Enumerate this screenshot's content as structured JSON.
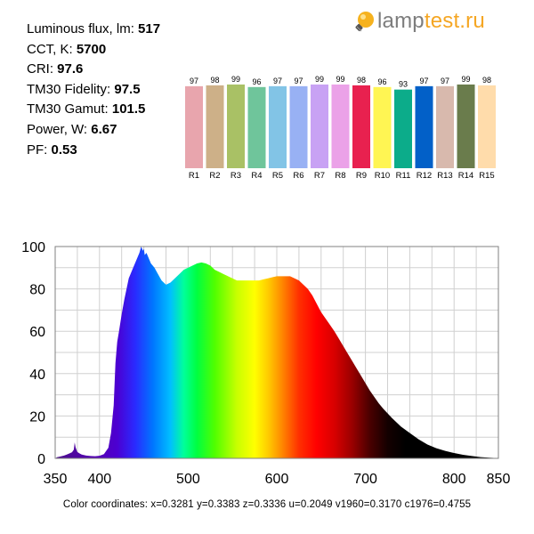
{
  "site": {
    "logo_icon": "lightbulb-icon",
    "logo_lamp": "lamp",
    "logo_test": "test.ru"
  },
  "params": [
    {
      "label": "Luminous flux, lm: ",
      "value": "517"
    },
    {
      "label": "CCT, K: ",
      "value": "5700"
    },
    {
      "label": "CRI: ",
      "value": "97.6"
    },
    {
      "label": "TM30 Fidelity: ",
      "value": "97.5"
    },
    {
      "label": "TM30 Gamut: ",
      "value": "101.5"
    },
    {
      "label": "Power, W:  ",
      "value": "6.67"
    },
    {
      "label": "PF:  ",
      "value": "0.53"
    }
  ],
  "color_coordinates": "Color coordinates: x=0.3281 y=0.3383 z=0.3336 u=0.2049 v1960=0.3170 c1976=0.4755",
  "chart_data": [
    {
      "type": "bar",
      "categories": [
        "R1",
        "R2",
        "R3",
        "R4",
        "R5",
        "R6",
        "R7",
        "R8",
        "R9",
        "R10",
        "R11",
        "R12",
        "R13",
        "R14",
        "R15"
      ],
      "values": [
        97,
        98,
        99,
        96,
        97,
        97,
        99,
        99,
        98,
        96,
        93,
        97,
        97,
        99,
        98
      ],
      "colors": [
        "#e8a5ad",
        "#cdb088",
        "#a9c165",
        "#6fc59b",
        "#82c4e6",
        "#98b1f4",
        "#c8a2f4",
        "#eba2e8",
        "#e8214f",
        "#fff553",
        "#0cac8a",
        "#0260c8",
        "#d8b9ad",
        "#6a7c4c",
        "#ffdcab"
      ],
      "ylim": [
        0,
        100
      ]
    },
    {
      "type": "area",
      "x": [
        350,
        352,
        356,
        360,
        363,
        366,
        369,
        371,
        372,
        373,
        375,
        378,
        380,
        385,
        390,
        395,
        400,
        405,
        410,
        413,
        416,
        418,
        420,
        422,
        425,
        428,
        430,
        433,
        436,
        439,
        442,
        445,
        447,
        449,
        450,
        451,
        453,
        455,
        458,
        462,
        466,
        470,
        475,
        480,
        485,
        490,
        495,
        500,
        505,
        510,
        515,
        520,
        525,
        530,
        535,
        540,
        545,
        550,
        555,
        560,
        565,
        570,
        575,
        580,
        585,
        590,
        595,
        600,
        605,
        610,
        615,
        620,
        625,
        630,
        635,
        640,
        645,
        650,
        655,
        660,
        665,
        670,
        675,
        680,
        685,
        690,
        695,
        700,
        705,
        710,
        715,
        720,
        730,
        740,
        750,
        760,
        770,
        780,
        790,
        800,
        810,
        820,
        830,
        840,
        850
      ],
      "y": [
        0,
        0.5,
        0.9,
        1.3,
        1.8,
        2.3,
        2.9,
        4.1,
        7.5,
        5.2,
        3.0,
        2.2,
        1.8,
        1.3,
        1.1,
        1.0,
        1.2,
        2.0,
        5.0,
        12,
        25,
        45,
        55,
        60,
        68,
        75,
        79,
        85,
        88,
        91,
        94,
        97,
        100,
        98,
        99,
        96,
        97,
        95,
        92,
        90,
        87,
        84,
        82,
        83,
        85,
        87,
        89,
        90,
        91,
        92,
        92.5,
        92,
        91,
        89,
        88,
        87,
        86,
        85,
        84,
        84,
        84,
        84,
        84,
        84,
        84.5,
        85,
        85.5,
        86,
        86,
        86,
        86,
        85,
        84,
        82,
        80,
        77,
        73,
        69,
        66,
        63,
        60,
        56.5,
        53,
        49.5,
        46,
        42.5,
        39,
        35.5,
        32,
        29,
        26,
        23.5,
        19,
        15,
        12,
        9,
        6.5,
        4.8,
        3.5,
        2.5,
        1.7,
        1.1,
        0.6,
        0.3,
        0.1
      ],
      "xlim": [
        350,
        850
      ],
      "ylim": [
        0,
        100
      ],
      "xticks": [
        350,
        400,
        500,
        600,
        700,
        800,
        850
      ],
      "yticks": [
        0,
        20,
        40,
        60,
        80,
        100
      ],
      "grid": true
    }
  ]
}
